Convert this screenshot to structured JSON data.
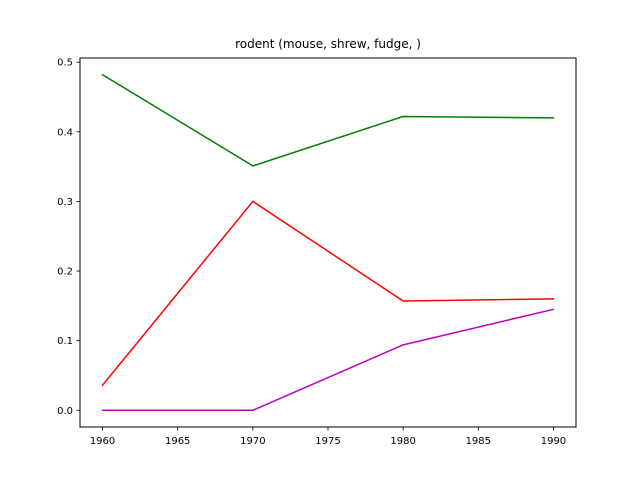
{
  "chart_data": {
    "type": "line",
    "title": "rodent (mouse, shrew, fudge, )",
    "xlabel": "",
    "ylabel": "",
    "x": [
      1960,
      1970,
      1980,
      1990
    ],
    "xlim": [
      1958.5,
      1991.5
    ],
    "ylim": [
      -0.024,
      0.506
    ],
    "xticks": [
      1960,
      1965,
      1970,
      1975,
      1980,
      1985,
      1990
    ],
    "yticks": [
      0.0,
      0.1,
      0.2,
      0.3,
      0.4,
      0.5
    ],
    "ytick_labels": [
      "0.0",
      "0.1",
      "0.2",
      "0.3",
      "0.4",
      "0.5"
    ],
    "grid": false,
    "legend": "none",
    "series": [
      {
        "color": "#008000",
        "values": [
          0.482,
          0.351,
          0.422,
          0.42
        ]
      },
      {
        "color": "#ff0000",
        "values": [
          0.036,
          0.3,
          0.157,
          0.16
        ]
      },
      {
        "color": "#bf00bf",
        "values": [
          0.0,
          0.0,
          0.094,
          0.145
        ]
      }
    ]
  }
}
